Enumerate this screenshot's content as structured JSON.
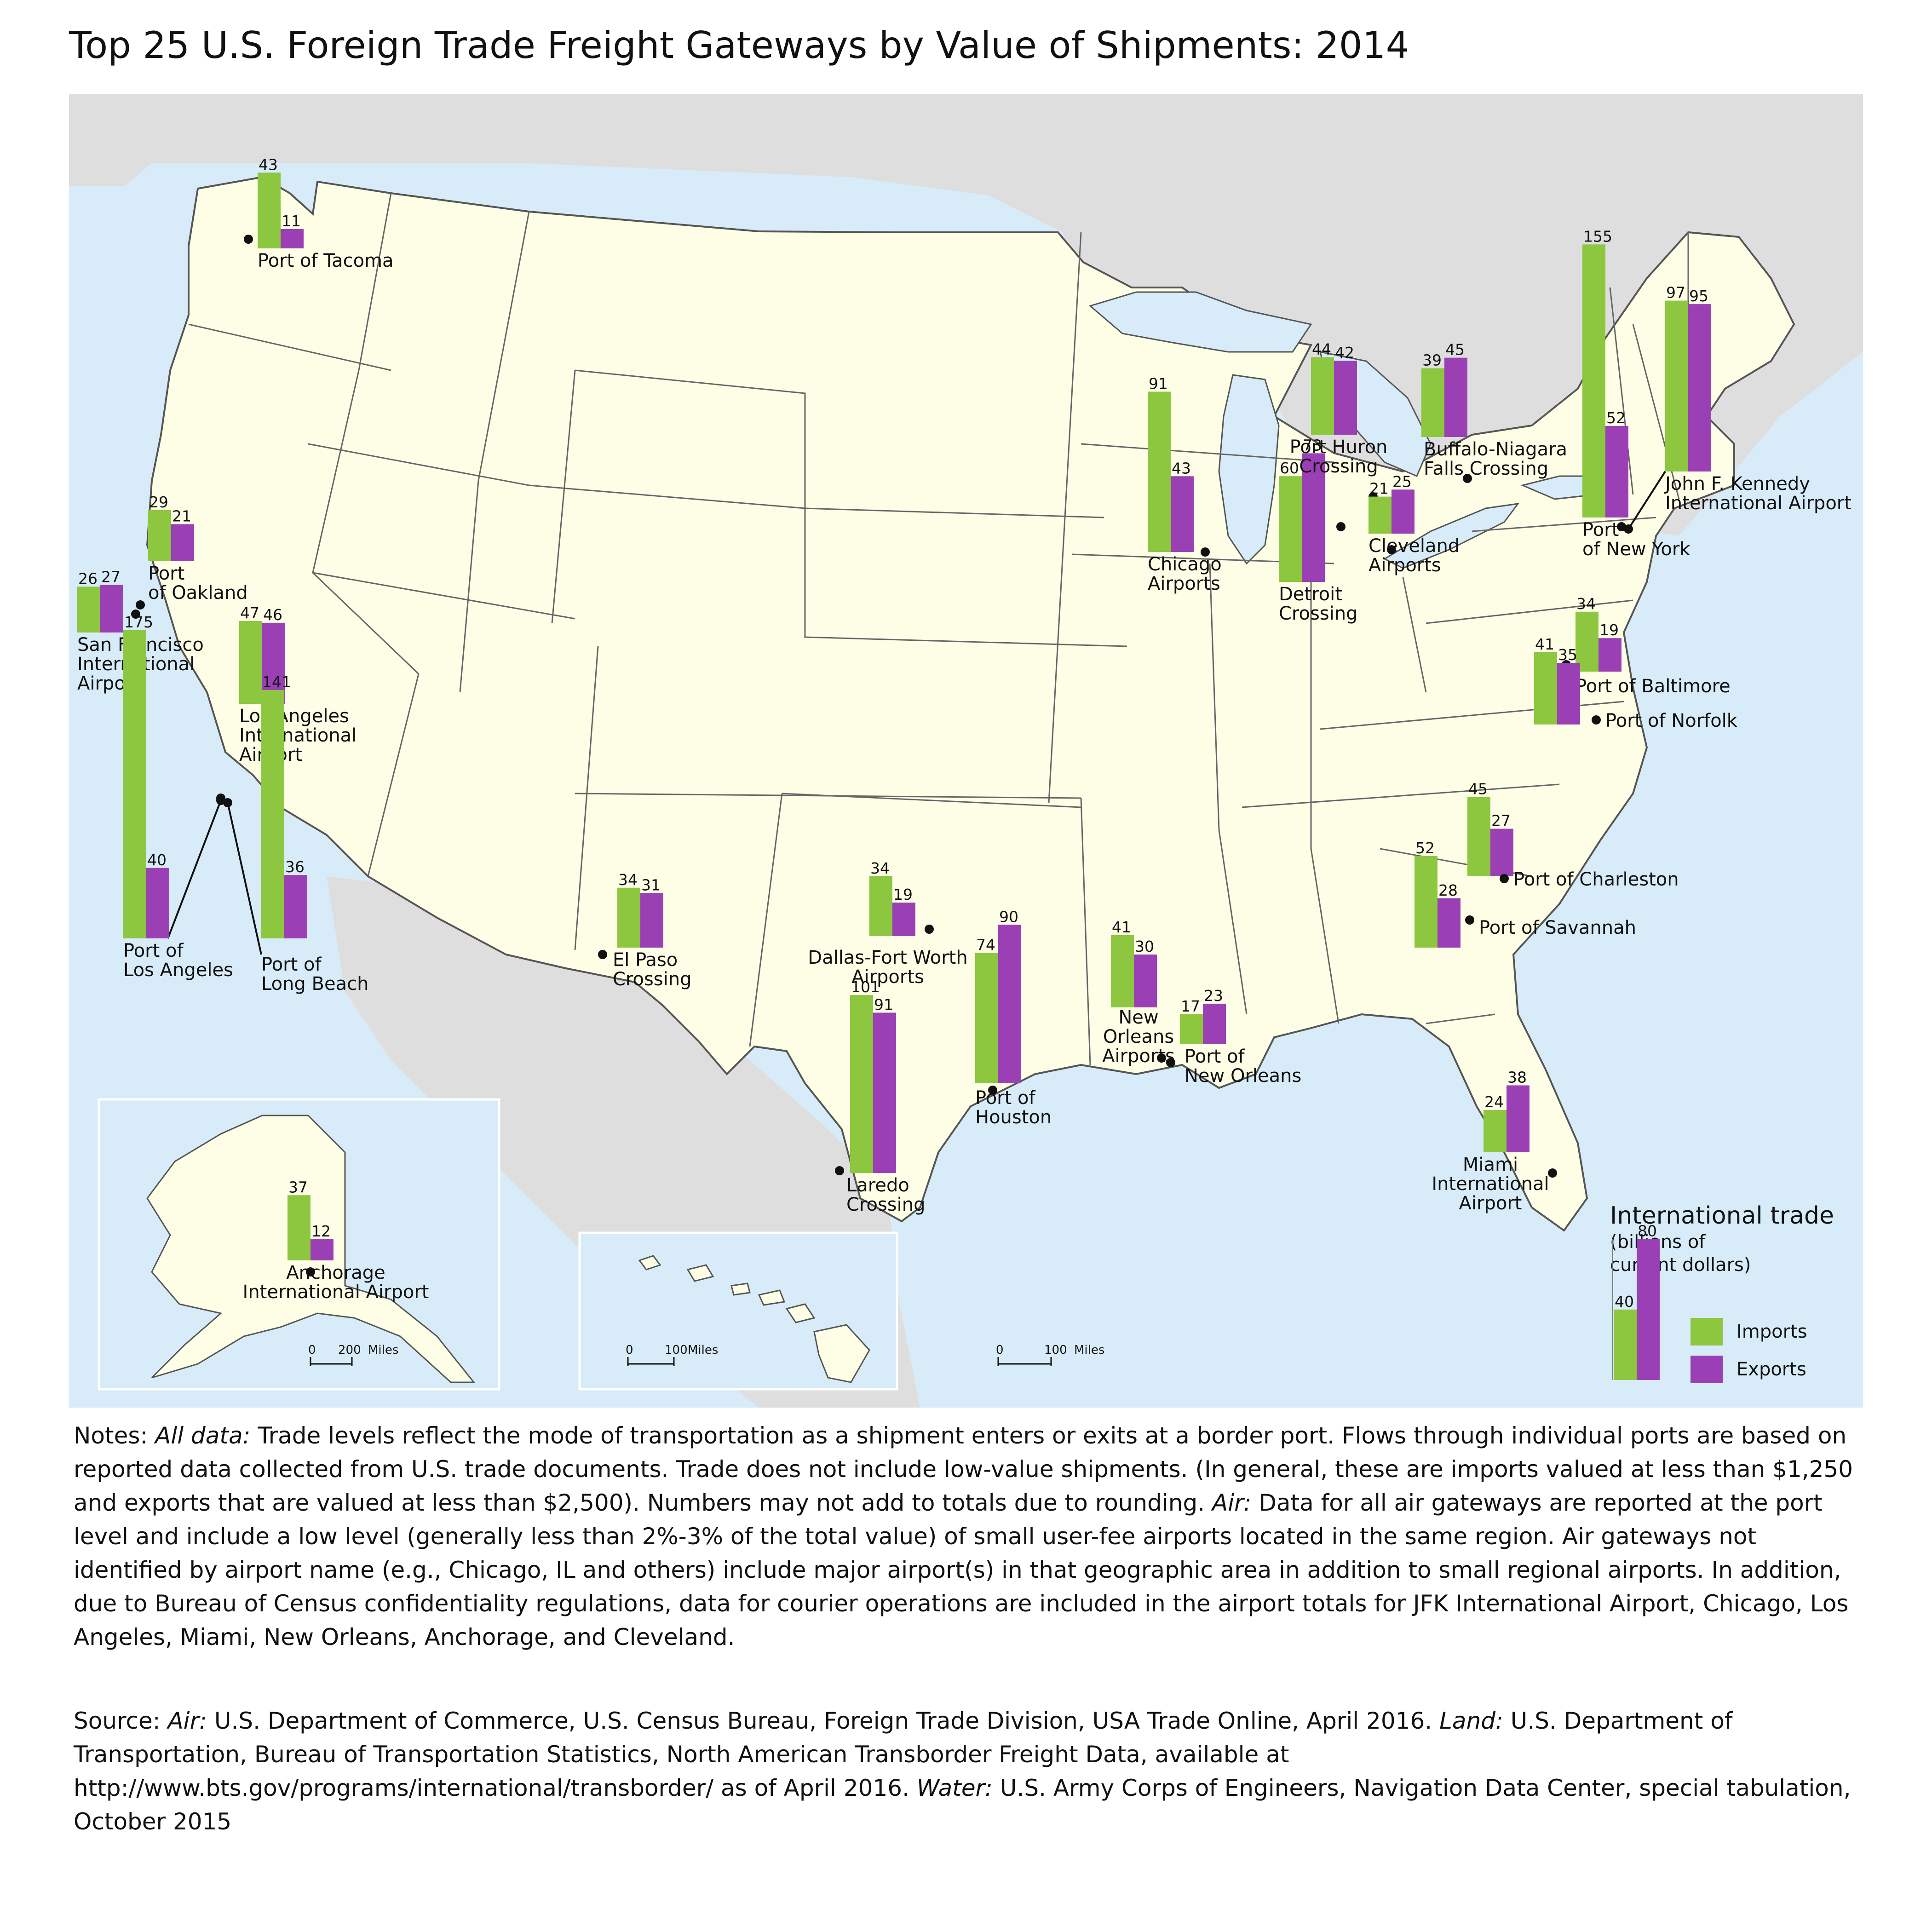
{
  "title": "Top 25 U.S. Foreign Trade Freight Gateways by Value of Shipments: 2014",
  "colors": {
    "imports": "#8dc63f",
    "exports": "#9b3fb5",
    "ocean": "#d7ecf8",
    "us_land": "#fefee6",
    "other_land": "#dedede",
    "state_border": "#666666"
  },
  "gateways": [
    {
      "name": "Port of Tacoma",
      "imports": 43,
      "exports": 11
    },
    {
      "name": "Port of Oakland",
      "imports": 29,
      "exports": 21
    },
    {
      "name": "San Francisco International Airport",
      "imports": 26,
      "exports": 27
    },
    {
      "name": "Los Angeles International Airport",
      "imports": 47,
      "exports": 46
    },
    {
      "name": "Port of Los Angeles",
      "imports": 175,
      "exports": 40
    },
    {
      "name": "Port of Long Beach",
      "imports": 141,
      "exports": 36
    },
    {
      "name": "El Paso Crossing",
      "imports": 34,
      "exports": 31
    },
    {
      "name": "Dallas-Fort Worth Airports",
      "imports": 34,
      "exports": 19
    },
    {
      "name": "Laredo Crossing",
      "imports": 101,
      "exports": 91
    },
    {
      "name": "Port of Houston",
      "imports": 74,
      "exports": 90
    },
    {
      "name": "New Orleans Airports",
      "imports": 41,
      "exports": 30
    },
    {
      "name": "Port of New Orleans",
      "imports": 17,
      "exports": 23
    },
    {
      "name": "Chicago Airports",
      "imports": 91,
      "exports": 43
    },
    {
      "name": "Detroit Crossing",
      "imports": 60,
      "exports": 73
    },
    {
      "name": "Port Huron Crossing",
      "imports": 44,
      "exports": 42
    },
    {
      "name": "Cleveland Airports",
      "imports": 21,
      "exports": 25
    },
    {
      "name": "Buffalo-Niagara Falls Crossing",
      "imports": 39,
      "exports": 45
    },
    {
      "name": "Port of New York",
      "imports": 155,
      "exports": 52
    },
    {
      "name": "John F. Kennedy International Airport",
      "imports": 97,
      "exports": 95
    },
    {
      "name": "Port of Baltimore",
      "imports": 34,
      "exports": 19
    },
    {
      "name": "Port of Norfolk",
      "imports": 41,
      "exports": 35
    },
    {
      "name": "Port of Charleston",
      "imports": 45,
      "exports": 27
    },
    {
      "name": "Port of Savannah",
      "imports": 52,
      "exports": 28
    },
    {
      "name": "Miami International Airport",
      "imports": 24,
      "exports": 38
    },
    {
      "name": "Anchorage International Airport",
      "imports": 37,
      "exports": 12
    }
  ],
  "legend": {
    "title": "International trade",
    "subtitle_line1": "(billions of",
    "subtitle_line2": "current dollars)",
    "sample_imports": 40,
    "sample_exports": 80,
    "imports_label": "Imports",
    "exports_label": "Exports"
  },
  "scale_bars": {
    "alaska": {
      "zero": "0",
      "value": "200",
      "unit": "Miles"
    },
    "hawaii": {
      "zero": "0",
      "value": "100",
      "unit": "Miles"
    },
    "mainland": {
      "zero": "0",
      "value": "100",
      "unit": "Miles"
    }
  },
  "notes": {
    "prefix": "Notes: ",
    "all_label": "All data:",
    "all_text": " Trade levels reflect the mode of transportation as a shipment enters or exits at a border port. Flows through individual ports are based on reported data collected from U.S. trade documents. Trade does not include low-value shipments. (In general, these are imports valued at less than $1,250 and exports that are valued at less than $2,500). Numbers may not add to totals due to rounding. ",
    "air_label": "Air:",
    "air_text": " Data for all air gateways are reported at the port level and include a low level (generally less than 2%-3% of the total value) of small user-fee airports located in the same region. Air gateways not identified by airport name (e.g., Chicago, IL and others) include major airport(s) in that geographic area in addition to small regional airports. In addition, due to Bureau of Census confidentiality regulations, data for courier operations are included in the airport totals for JFK International Airport, Chicago, Los Angeles, Miami, New Orleans, Anchorage, and Cleveland."
  },
  "source": {
    "prefix": "Source: ",
    "air_label": "Air:",
    "air_text": " U.S. Department of Commerce, U.S. Census Bureau, Foreign Trade Division, USA Trade Online, April 2016. ",
    "land_label": "Land:",
    "land_text": " U.S. Department of Transportation, Bureau of Transportation Statistics, North American Transborder Freight Data, available at http://www.bts.gov/programs/international/transborder/ as of April 2016. ",
    "water_label": "Water:",
    "water_text": " U.S. Army Corps of Engineers, Navigation Data Center, special tabulation, October 2015"
  }
}
